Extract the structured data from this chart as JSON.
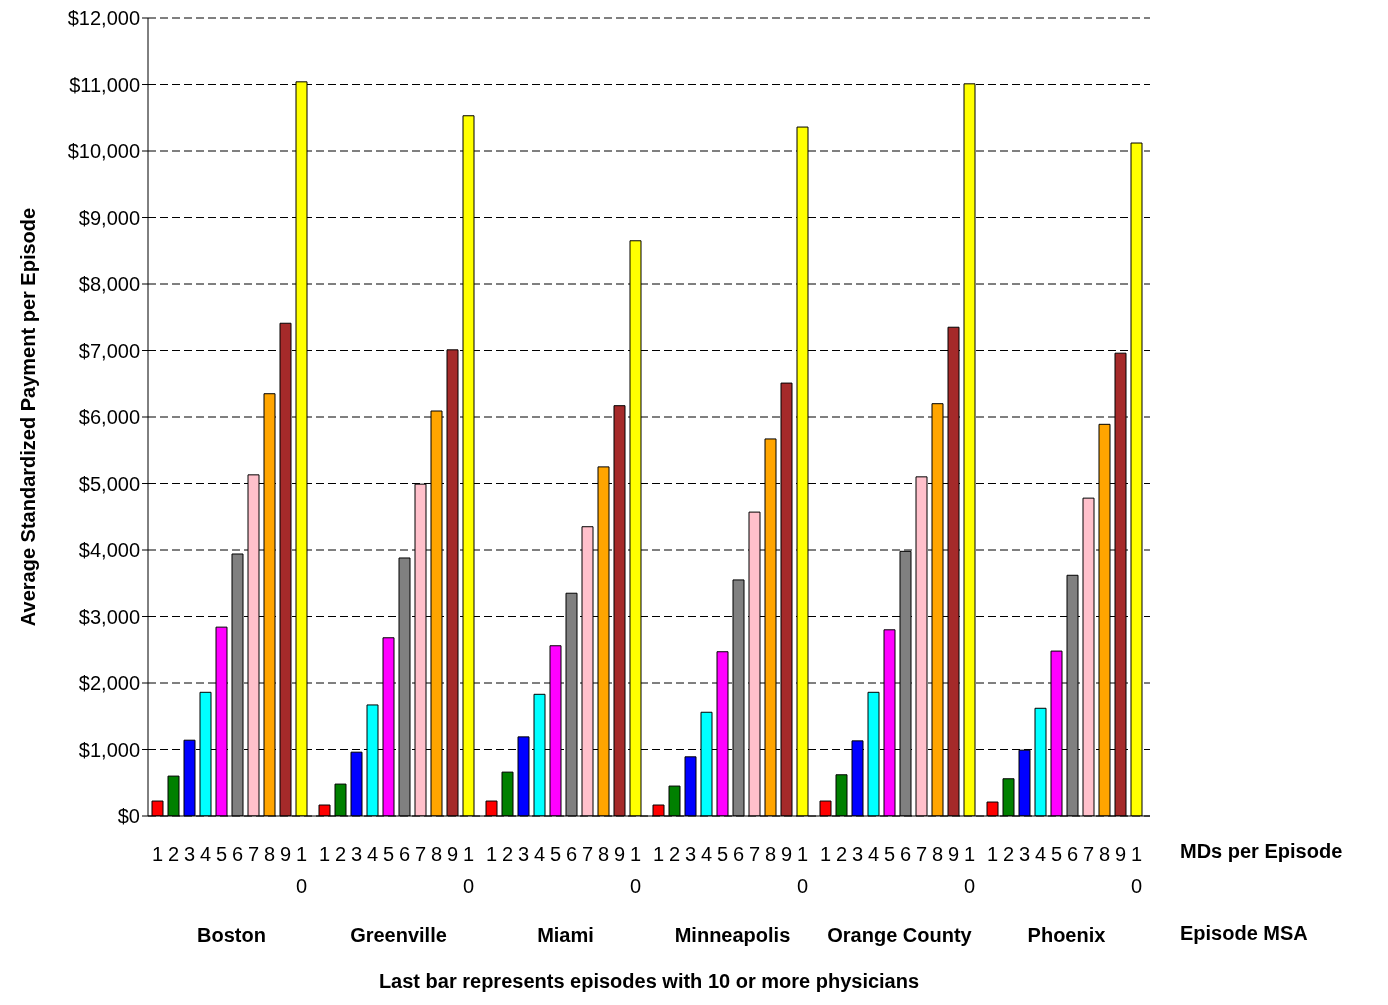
{
  "chart_data": {
    "type": "bar",
    "ylabel": "Average Standardized Payment per Episode",
    "xlabel": "Last bar represents episodes with 10 or more physicians",
    "annotations": [
      "MDs per Episode",
      "Episode MSA"
    ],
    "categories": [
      "Boston",
      "Greenville",
      "Miami",
      "Minneapolis",
      "Orange County",
      "Phoenix"
    ],
    "series": [
      {
        "name": "1",
        "color": "#ff0000",
        "values": [
          225,
          165,
          225,
          165,
          225,
          210
        ]
      },
      {
        "name": "2",
        "color": "#008000",
        "values": [
          600,
          480,
          660,
          450,
          620,
          560
        ]
      },
      {
        "name": "3",
        "color": "#0000ff",
        "values": [
          1140,
          960,
          1190,
          890,
          1130,
          990
        ]
      },
      {
        "name": "4",
        "color": "#00ffff",
        "values": [
          1860,
          1670,
          1830,
          1560,
          1860,
          1620
        ]
      },
      {
        "name": "5",
        "color": "#ff00ff",
        "values": [
          2840,
          2680,
          2560,
          2470,
          2800,
          2480
        ]
      },
      {
        "name": "6",
        "color": "#808080",
        "values": [
          3940,
          3880,
          3350,
          3550,
          3980,
          3620
        ]
      },
      {
        "name": "7",
        "color": "#ffc0cb",
        "values": [
          5130,
          4990,
          4350,
          4570,
          5100,
          4780
        ]
      },
      {
        "name": "8",
        "color": "#ffa500",
        "values": [
          6350,
          6090,
          5250,
          5670,
          6200,
          5890
        ]
      },
      {
        "name": "9",
        "color": "#a52a2a",
        "values": [
          7410,
          7010,
          6170,
          6510,
          7350,
          6960
        ]
      },
      {
        "name": "10",
        "color": "#ffff00",
        "values": [
          11040,
          10530,
          8650,
          10360,
          11010,
          10120
        ]
      }
    ],
    "ylim": [
      0,
      12000
    ],
    "yticks": [
      {
        "value": 0,
        "label": "$0"
      },
      {
        "value": 1000,
        "label": "$1,000"
      },
      {
        "value": 2000,
        "label": "$2,000"
      },
      {
        "value": 3000,
        "label": "$3,000"
      },
      {
        "value": 4000,
        "label": "$4,000"
      },
      {
        "value": 5000,
        "label": "$5,000"
      },
      {
        "value": 6000,
        "label": "$6,000"
      },
      {
        "value": 7000,
        "label": "$7,000"
      },
      {
        "value": 8000,
        "label": "$8,000"
      },
      {
        "value": 9000,
        "label": "$9,000"
      },
      {
        "value": 10000,
        "label": "$10,000"
      },
      {
        "value": 11000,
        "label": "$11,000"
      },
      {
        "value": 12000,
        "label": "$12,000"
      }
    ],
    "grid": "y",
    "legend": false
  }
}
